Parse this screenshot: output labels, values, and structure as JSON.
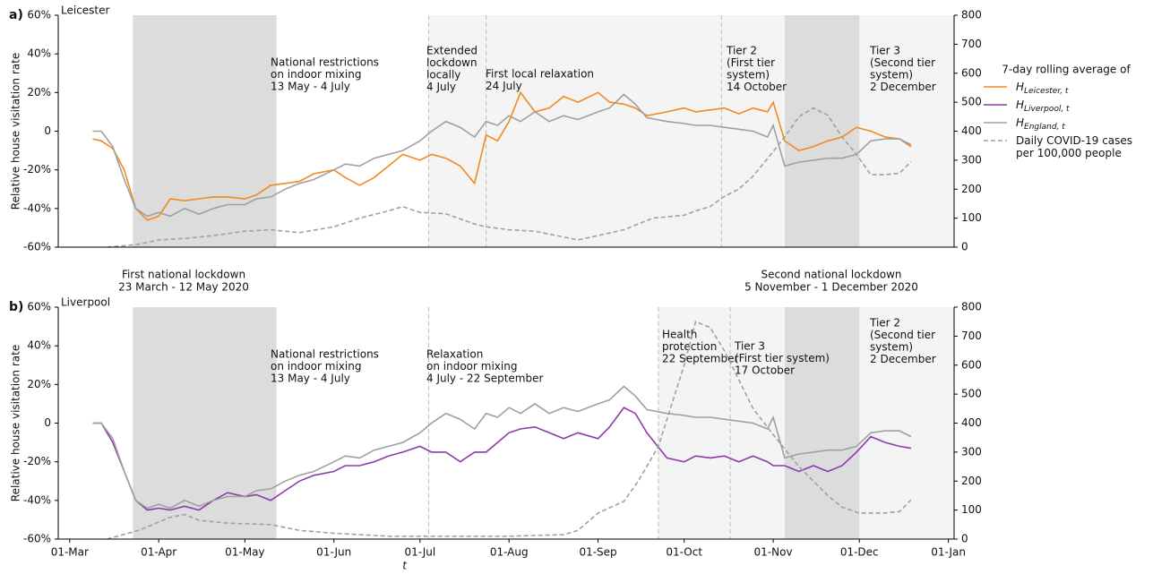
{
  "chart_data": [
    {
      "type": "line",
      "panel_label": "a)",
      "title": "Leicester",
      "ylabel": "Relative house visitation rate",
      "legend_title": "7-day rolling average of",
      "xlim": [
        "02-26",
        "01-03"
      ],
      "ylim": [
        -60,
        60
      ],
      "yticks": [
        {
          "value": -60,
          "label": "-60%"
        },
        {
          "value": -40,
          "label": "-40%"
        },
        {
          "value": -20,
          "label": "-20%"
        },
        0,
        {
          "value": 20,
          "label": "20%"
        },
        {
          "value": 40,
          "label": "40%"
        },
        {
          "value": 60,
          "label": "60%"
        }
      ],
      "y2lim": [
        0,
        800
      ],
      "y2ticks": [
        0,
        100,
        200,
        300,
        400,
        500,
        600,
        700,
        800
      ],
      "periods": [
        {
          "start": "07-04",
          "end": "01-03",
          "shade": "light"
        },
        {
          "start": "03-23",
          "end": "05-12",
          "shade": "dark"
        },
        {
          "start": "11-05",
          "end": "12-01",
          "shade": "dark"
        }
      ],
      "vlines": [
        "07-04",
        "07-24",
        "10-14"
      ],
      "annotations": [
        [
          "National restrictions",
          "on indoor mixing",
          "13 May - 4 July"
        ],
        [
          "Extended",
          "lockdown",
          "locally",
          "4 July"
        ],
        [
          "First local relaxation",
          "24 July"
        ],
        [
          "Tier 2",
          "(First tier",
          "system)",
          "14 October"
        ],
        [
          "Tier 3",
          "(Second tier",
          "system)",
          "2 December"
        ]
      ],
      "series": [
        {
          "name": "H",
          "subscript": "Leicester, t",
          "color": "#f28a1e",
          "x": [
            "03-09",
            "03-12",
            "03-16",
            "03-20",
            "03-24",
            "03-28",
            "04-01",
            "04-05",
            "04-10",
            "04-15",
            "04-20",
            "04-25",
            "05-01",
            "05-05",
            "05-10",
            "05-15",
            "05-20",
            "05-25",
            "06-01",
            "06-05",
            "06-10",
            "06-15",
            "06-20",
            "06-25",
            "07-01",
            "07-05",
            "07-10",
            "07-15",
            "07-20",
            "07-24",
            "07-28",
            "08-01",
            "08-05",
            "08-10",
            "08-15",
            "08-20",
            "08-25",
            "09-01",
            "09-05",
            "09-10",
            "09-14",
            "09-18",
            "09-25",
            "10-01",
            "10-05",
            "10-10",
            "10-15",
            "10-20",
            "10-25",
            "10-30",
            "11-01",
            "11-05",
            "11-10",
            "11-15",
            "11-20",
            "11-25",
            "11-30",
            "12-05",
            "12-10",
            "12-15",
            "12-19"
          ],
          "values": [
            -4,
            -5,
            -9,
            -20,
            -40,
            -46,
            -44,
            -35,
            -36,
            -35,
            -34,
            -34,
            -35,
            -33,
            -28,
            -27,
            -26,
            -22,
            -20,
            -24,
            -28,
            -24,
            -18,
            -12,
            -15,
            -12,
            -14,
            -18,
            -27,
            -2,
            -5,
            5,
            20,
            10,
            12,
            18,
            15,
            20,
            15,
            14,
            12,
            8,
            10,
            12,
            10,
            11,
            12,
            9,
            12,
            10,
            15,
            -5,
            -10,
            -8,
            -5,
            -3,
            2,
            0,
            -3,
            -4,
            -8
          ]
        },
        {
          "name": "H",
          "subscript": "England, t",
          "color": "#a0a0a0",
          "x": [
            "03-09",
            "03-12",
            "03-16",
            "03-20",
            "03-24",
            "03-28",
            "04-01",
            "04-05",
            "04-10",
            "04-15",
            "04-20",
            "04-25",
            "05-01",
            "05-05",
            "05-10",
            "05-15",
            "05-20",
            "05-25",
            "06-01",
            "06-05",
            "06-10",
            "06-15",
            "06-20",
            "06-25",
            "07-01",
            "07-05",
            "07-10",
            "07-15",
            "07-20",
            "07-24",
            "07-28",
            "08-01",
            "08-05",
            "08-10",
            "08-15",
            "08-20",
            "08-25",
            "09-01",
            "09-05",
            "09-10",
            "09-14",
            "09-18",
            "09-25",
            "10-01",
            "10-05",
            "10-10",
            "10-15",
            "10-20",
            "10-25",
            "10-30",
            "11-01",
            "11-05",
            "11-10",
            "11-15",
            "11-20",
            "11-25",
            "11-30",
            "12-05",
            "12-10",
            "12-15",
            "12-19"
          ],
          "values": [
            0,
            0,
            -8,
            -25,
            -40,
            -44,
            -42,
            -44,
            -40,
            -43,
            -40,
            -38,
            -38,
            -35,
            -34,
            -30,
            -27,
            -25,
            -20,
            -17,
            -18,
            -14,
            -12,
            -10,
            -5,
            0,
            5,
            2,
            -3,
            5,
            3,
            8,
            5,
            10,
            5,
            8,
            6,
            10,
            12,
            19,
            14,
            7,
            5,
            4,
            3,
            3,
            2,
            1,
            0,
            -3,
            3,
            -18,
            -16,
            -15,
            -14,
            -14,
            -12,
            -5,
            -4,
            -4,
            -7
          ]
        },
        {
          "name": "Daily COVID-19 cases per 100,000 people",
          "color": "#a0a0a0",
          "style": "dashed",
          "axis": "y2",
          "x": [
            "03-14",
            "03-20",
            "03-25",
            "04-01",
            "04-10",
            "04-20",
            "05-01",
            "05-10",
            "05-20",
            "06-01",
            "06-10",
            "06-20",
            "06-25",
            "07-01",
            "07-10",
            "07-20",
            "07-24",
            "08-01",
            "08-10",
            "08-20",
            "08-25",
            "09-01",
            "09-10",
            "09-20",
            "10-01",
            "10-05",
            "10-10",
            "10-15",
            "10-20",
            "10-25",
            "11-01",
            "11-05",
            "11-10",
            "11-15",
            "11-20",
            "11-25",
            "11-30",
            "12-05",
            "12-10",
            "12-15",
            "12-19"
          ],
          "values": [
            0,
            5,
            10,
            25,
            30,
            40,
            55,
            60,
            50,
            70,
            100,
            125,
            140,
            120,
            115,
            80,
            70,
            60,
            55,
            35,
            25,
            40,
            60,
            100,
            110,
            125,
            140,
            175,
            200,
            245,
            330,
            380,
            450,
            480,
            455,
            380,
            320,
            250,
            250,
            255,
            295
          ]
        }
      ]
    },
    {
      "type": "line",
      "panel_label": "b)",
      "title": "Liverpool",
      "ylabel": "Relative house visitation rate",
      "xlabel": "t",
      "between": [
        [
          "First national lockdown",
          "23 March - 12 May 2020"
        ],
        [
          "Second national lockdown",
          "5 November - 1 December 2020"
        ]
      ],
      "xlim": [
        "02-26",
        "01-03"
      ],
      "xticks": [
        {
          "value": "03-01",
          "label": "01-Mar"
        },
        {
          "value": "04-01",
          "label": "01-Apr"
        },
        {
          "value": "05-01",
          "label": "01-May"
        },
        {
          "value": "06-01",
          "label": "01-Jun"
        },
        {
          "value": "07-01",
          "label": "01-Jul"
        },
        {
          "value": "08-01",
          "label": "01-Aug"
        },
        {
          "value": "09-01",
          "label": "01-Sep"
        },
        {
          "value": "10-01",
          "label": "01-Oct"
        },
        {
          "value": "11-01",
          "label": "01-Nov"
        },
        {
          "value": "12-01",
          "label": "01-Dec"
        },
        {
          "value": "01-01",
          "label": "01-Jan"
        }
      ],
      "ylim": [
        -60,
        60
      ],
      "yticks": [
        {
          "value": -60,
          "label": "-60%"
        },
        {
          "value": -40,
          "label": "-40%"
        },
        {
          "value": -20,
          "label": "-20%"
        },
        0,
        {
          "value": 20,
          "label": "20%"
        },
        {
          "value": 40,
          "label": "40%"
        },
        {
          "value": 60,
          "label": "60%"
        }
      ],
      "y2lim": [
        0,
        800
      ],
      "y2ticks": [
        0,
        100,
        200,
        300,
        400,
        500,
        600,
        700,
        800
      ],
      "periods": [
        {
          "start": "09-22",
          "end": "01-03",
          "shade": "light"
        },
        {
          "start": "03-23",
          "end": "05-12",
          "shade": "dark"
        },
        {
          "start": "11-05",
          "end": "12-01",
          "shade": "dark"
        }
      ],
      "vlines": [
        "07-04",
        "09-22",
        "10-17"
      ],
      "annotations": [
        [
          "National restrictions",
          "on indoor mixing",
          "13 May - 4 July"
        ],
        [
          "Relaxation",
          "on indoor mixing",
          "4 July - 22 September"
        ],
        [
          "Health",
          "protection",
          "22 September"
        ],
        [
          "Tier 3",
          "(First tier system)",
          "17 October"
        ],
        [
          "Tier 2",
          "(Second tier",
          "system)",
          "2 December"
        ]
      ],
      "series": [
        {
          "name": "H",
          "subscript": "Liverpool, t",
          "color": "#8e3aa8",
          "x": [
            "03-09",
            "03-12",
            "03-16",
            "03-20",
            "03-24",
            "03-28",
            "04-01",
            "04-05",
            "04-10",
            "04-15",
            "04-20",
            "04-25",
            "05-01",
            "05-05",
            "05-10",
            "05-15",
            "05-20",
            "05-25",
            "06-01",
            "06-05",
            "06-10",
            "06-15",
            "06-20",
            "06-25",
            "07-01",
            "07-05",
            "07-10",
            "07-15",
            "07-20",
            "07-24",
            "07-28",
            "08-01",
            "08-05",
            "08-10",
            "08-15",
            "08-20",
            "08-25",
            "09-01",
            "09-05",
            "09-10",
            "09-14",
            "09-18",
            "09-25",
            "10-01",
            "10-05",
            "10-10",
            "10-15",
            "10-20",
            "10-25",
            "10-30",
            "11-01",
            "11-05",
            "11-10",
            "11-15",
            "11-20",
            "11-25",
            "11-30",
            "12-05",
            "12-10",
            "12-15",
            "12-19"
          ],
          "values": [
            0,
            0,
            -10,
            -25,
            -40,
            -45,
            -44,
            -45,
            -43,
            -45,
            -40,
            -36,
            -38,
            -37,
            -40,
            -35,
            -30,
            -27,
            -25,
            -22,
            -22,
            -20,
            -17,
            -15,
            -12,
            -15,
            -15,
            -20,
            -15,
            -15,
            -10,
            -5,
            -3,
            -2,
            -5,
            -8,
            -5,
            -8,
            -2,
            8,
            5,
            -5,
            -18,
            -20,
            -17,
            -18,
            -17,
            -20,
            -17,
            -20,
            -22,
            -22,
            -25,
            -22,
            -25,
            -22,
            -15,
            -7,
            -10,
            -12,
            -13
          ]
        },
        {
          "name": "H",
          "subscript": "England, t",
          "color": "#a0a0a0",
          "x": [
            "03-09",
            "03-12",
            "03-16",
            "03-20",
            "03-24",
            "03-28",
            "04-01",
            "04-05",
            "04-10",
            "04-15",
            "04-20",
            "04-25",
            "05-01",
            "05-05",
            "05-10",
            "05-15",
            "05-20",
            "05-25",
            "06-01",
            "06-05",
            "06-10",
            "06-15",
            "06-20",
            "06-25",
            "07-01",
            "07-05",
            "07-10",
            "07-15",
            "07-20",
            "07-24",
            "07-28",
            "08-01",
            "08-05",
            "08-10",
            "08-15",
            "08-20",
            "08-25",
            "09-01",
            "09-05",
            "09-10",
            "09-14",
            "09-18",
            "09-25",
            "10-01",
            "10-05",
            "10-10",
            "10-15",
            "10-20",
            "10-25",
            "10-30",
            "11-01",
            "11-05",
            "11-10",
            "11-15",
            "11-20",
            "11-25",
            "11-30",
            "12-05",
            "12-10",
            "12-15",
            "12-19"
          ],
          "values": [
            0,
            0,
            -8,
            -25,
            -40,
            -44,
            -42,
            -44,
            -40,
            -43,
            -40,
            -38,
            -38,
            -35,
            -34,
            -30,
            -27,
            -25,
            -20,
            -17,
            -18,
            -14,
            -12,
            -10,
            -5,
            0,
            5,
            2,
            -3,
            5,
            3,
            8,
            5,
            10,
            5,
            8,
            6,
            10,
            12,
            19,
            14,
            7,
            5,
            4,
            3,
            3,
            2,
            1,
            0,
            -3,
            3,
            -18,
            -16,
            -15,
            -14,
            -14,
            -12,
            -5,
            -4,
            -4,
            -7
          ]
        },
        {
          "name": "Daily COVID-19 cases per 100,000 people",
          "color": "#a0a0a0",
          "style": "dashed",
          "axis": "y2",
          "x": [
            "03-14",
            "03-25",
            "04-05",
            "04-10",
            "04-15",
            "04-25",
            "05-10",
            "05-20",
            "06-01",
            "06-20",
            "07-01",
            "08-01",
            "08-20",
            "08-25",
            "09-01",
            "09-10",
            "09-15",
            "09-22",
            "10-01",
            "10-05",
            "10-10",
            "10-15",
            "10-20",
            "10-25",
            "11-01",
            "11-10",
            "11-20",
            "11-25",
            "12-01",
            "12-10",
            "12-15",
            "12-19"
          ],
          "values": [
            0,
            30,
            75,
            85,
            65,
            55,
            50,
            30,
            20,
            10,
            10,
            10,
            15,
            30,
            90,
            130,
            200,
            320,
            600,
            750,
            730,
            650,
            550,
            450,
            360,
            250,
            150,
            110,
            90,
            90,
            95,
            135
          ]
        }
      ]
    }
  ]
}
